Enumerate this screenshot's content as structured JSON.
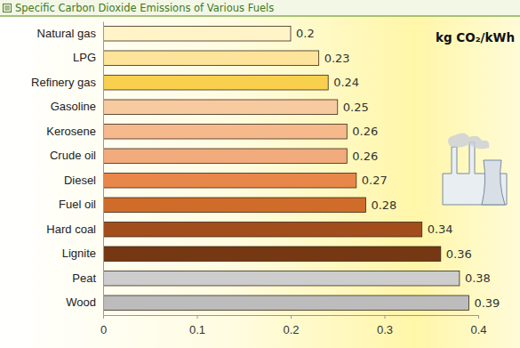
{
  "chart_data": {
    "type": "bar",
    "title": "Specific Carbon Dioxide Emissions of Various Fuels",
    "annotation": "kg CO₂/kWh",
    "orientation": "horizontal",
    "categories": [
      "Natural gas",
      "LPG",
      "Refinery gas",
      "Gasoline",
      "Kerosene",
      "Crude oil",
      "Diesel",
      "Fuel oil",
      "Hard coal",
      "Lignite",
      "Peat",
      "Wood"
    ],
    "values": [
      0.2,
      0.23,
      0.24,
      0.25,
      0.26,
      0.26,
      0.27,
      0.28,
      0.34,
      0.36,
      0.38,
      0.39
    ],
    "colors": [
      "#fff3c8",
      "#fde49a",
      "#f9d04e",
      "#f8caa0",
      "#f5b98c",
      "#f2ab7c",
      "#e8874a",
      "#d06c2a",
      "#a24e1c",
      "#763812",
      "#cdcdcd",
      "#bcbcbc"
    ],
    "data_labels": true,
    "grid": false,
    "xlim": [
      0,
      0.4
    ],
    "xticks": [
      0,
      0.1,
      0.2,
      0.3,
      0.4
    ]
  }
}
